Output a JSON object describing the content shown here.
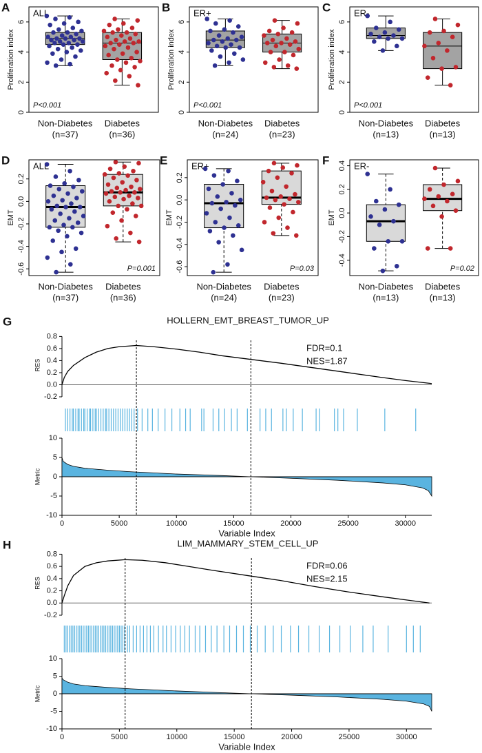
{
  "chart_data": [
    {
      "type": "box",
      "panel": "A",
      "label": "ALL",
      "ylabel": "Proliferation index",
      "p_label": "P<0.001",
      "p_corner": "bottom-left",
      "ylim": [
        0,
        7
      ],
      "yticks": [
        0,
        2,
        4,
        6
      ],
      "box_fill": "#a3a3a3",
      "whisker_style": "solid",
      "groups": [
        {
          "name": "Non-Diabetes",
          "n_label": "(n=37)",
          "color": "#2e3192",
          "box": [
            3.1,
            4.5,
            4.9,
            5.3,
            6.4
          ],
          "points": [
            6.4,
            6.3,
            6.2,
            6.0,
            5.9,
            5.8,
            5.6,
            5.5,
            5.4,
            5.3,
            5.3,
            5.2,
            5.1,
            5.0,
            5.0,
            4.9,
            4.9,
            4.9,
            4.8,
            4.8,
            4.7,
            4.7,
            4.6,
            4.6,
            4.5,
            4.5,
            4.4,
            4.3,
            4.2,
            4.1,
            4.0,
            3.9,
            3.7,
            3.5,
            3.3,
            3.2,
            3.1
          ]
        },
        {
          "name": "Diabetes",
          "n_label": "(n=36)",
          "color": "#c1272d",
          "box": [
            1.8,
            3.5,
            4.6,
            5.3,
            6.2
          ],
          "points": [
            6.2,
            6.1,
            5.9,
            5.8,
            5.6,
            5.5,
            5.4,
            5.3,
            5.3,
            5.2,
            5.1,
            5.0,
            4.9,
            4.8,
            4.7,
            4.7,
            4.6,
            4.6,
            4.5,
            4.4,
            4.3,
            4.2,
            4.0,
            3.9,
            3.8,
            3.6,
            3.5,
            3.4,
            3.3,
            3.1,
            3.0,
            2.8,
            2.6,
            2.4,
            2.1,
            1.8
          ]
        }
      ]
    },
    {
      "type": "box",
      "panel": "B",
      "label": "ER+",
      "ylabel": "Proliferation index",
      "p_label": "P<0.001",
      "p_corner": "bottom-left",
      "ylim": [
        0,
        7
      ],
      "yticks": [
        0,
        2,
        4,
        6
      ],
      "box_fill": "#a3a3a3",
      "whisker_style": "solid",
      "groups": [
        {
          "name": "Non-Diabetes",
          "n_label": "(n=24)",
          "color": "#2e3192",
          "box": [
            3.1,
            4.3,
            4.8,
            5.4,
            6.2
          ],
          "points": [
            6.2,
            6.1,
            5.9,
            5.7,
            5.5,
            5.4,
            5.3,
            5.1,
            5.0,
            4.9,
            4.8,
            4.8,
            4.7,
            4.6,
            4.5,
            4.4,
            4.3,
            4.3,
            4.1,
            3.9,
            3.7,
            3.5,
            3.3,
            3.1
          ]
        },
        {
          "name": "Diabetes",
          "n_label": "(n=23)",
          "color": "#c1272d",
          "box": [
            2.9,
            4.0,
            4.6,
            5.2,
            6.1
          ],
          "points": [
            6.1,
            5.9,
            5.6,
            5.4,
            5.3,
            5.2,
            5.1,
            4.9,
            4.8,
            4.7,
            4.6,
            4.6,
            4.5,
            4.4,
            4.2,
            4.0,
            4.0,
            3.8,
            3.5,
            3.3,
            3.1,
            3.0,
            2.9
          ]
        }
      ]
    },
    {
      "type": "box",
      "panel": "C",
      "label": "ER-",
      "ylabel": "Proliferation index",
      "p_label": "P<0.001",
      "p_corner": "bottom-left",
      "ylim": [
        0,
        7
      ],
      "yticks": [
        0,
        2,
        4,
        6
      ],
      "box_fill": "#a3a3a3",
      "whisker_style": "solid",
      "groups": [
        {
          "name": "Non-Diabetes",
          "n_label": "(n=13)",
          "color": "#2e3192",
          "box": [
            4.1,
            4.9,
            5.1,
            5.6,
            6.4
          ],
          "points": [
            6.4,
            6.0,
            5.6,
            5.5,
            5.3,
            5.2,
            5.1,
            5.0,
            4.9,
            4.9,
            4.7,
            4.4,
            4.1
          ]
        },
        {
          "name": "Diabetes",
          "n_label": "(n=13)",
          "color": "#c1272d",
          "box": [
            1.8,
            2.9,
            4.4,
            5.3,
            6.2
          ],
          "points": [
            6.2,
            5.8,
            5.4,
            5.3,
            5.0,
            4.6,
            4.4,
            4.1,
            3.6,
            3.0,
            2.9,
            2.3,
            1.8
          ]
        }
      ]
    },
    {
      "type": "box",
      "panel": "D",
      "label": "ALL",
      "ylabel": "EMT",
      "p_label": "P=0.001",
      "p_corner": "bottom-right",
      "ylim": [
        -0.66,
        0.37
      ],
      "yticks": [
        -0.6,
        -0.4,
        -0.2,
        {
          "value": 0,
          "label": "0.0"
        },
        0.2
      ],
      "box_fill": "#d9d9d9",
      "whisker_style": "dashed",
      "groups": [
        {
          "name": "Non-Diabetes",
          "n_label": "(n=37)",
          "color": "#2e3192",
          "box": [
            -0.63,
            -0.23,
            -0.05,
            0.14,
            0.33
          ],
          "points": [
            0.33,
            0.27,
            0.22,
            0.19,
            0.16,
            0.14,
            0.13,
            0.11,
            0.09,
            0.07,
            0.05,
            0.03,
            0.01,
            0.0,
            -0.02,
            -0.04,
            -0.05,
            -0.05,
            -0.07,
            -0.09,
            -0.11,
            -0.13,
            -0.15,
            -0.17,
            -0.19,
            -0.21,
            -0.23,
            -0.23,
            -0.26,
            -0.28,
            -0.31,
            -0.35,
            -0.42,
            -0.45,
            -0.5,
            -0.56,
            -0.63
          ]
        },
        {
          "name": "Diabetes",
          "n_label": "(n=36)",
          "color": "#c1272d",
          "box": [
            -0.36,
            -0.04,
            0.08,
            0.24,
            0.35
          ],
          "points": [
            0.35,
            0.34,
            0.31,
            0.29,
            0.27,
            0.25,
            0.24,
            0.23,
            0.21,
            0.19,
            0.17,
            0.15,
            0.13,
            0.12,
            0.11,
            0.1,
            0.09,
            0.08,
            0.08,
            0.07,
            0.05,
            0.04,
            0.03,
            0.02,
            0.0,
            -0.02,
            -0.04,
            -0.04,
            -0.07,
            -0.1,
            -0.13,
            -0.17,
            -0.22,
            -0.28,
            -0.33,
            -0.36
          ]
        }
      ]
    },
    {
      "type": "box",
      "panel": "E",
      "label": "ER+",
      "ylabel": "EMT",
      "p_label": "P=0.03",
      "p_corner": "bottom-right",
      "ylim": [
        -0.68,
        0.36
      ],
      "yticks": [
        -0.6,
        -0.4,
        -0.2,
        {
          "value": 0,
          "label": "0.0"
        },
        0.2
      ],
      "box_fill": "#d9d9d9",
      "whisker_style": "dashed",
      "groups": [
        {
          "name": "Non-Diabetes",
          "n_label": "(n=24)",
          "color": "#2e3192",
          "box": [
            -0.65,
            -0.25,
            -0.03,
            0.14,
            0.28
          ],
          "points": [
            0.28,
            0.26,
            0.22,
            0.17,
            0.14,
            0.1,
            0.06,
            0.03,
            0.0,
            -0.02,
            -0.03,
            -0.05,
            -0.08,
            -0.12,
            -0.16,
            -0.2,
            -0.23,
            -0.25,
            -0.28,
            -0.32,
            -0.38,
            -0.45,
            -0.58,
            -0.65
          ]
        },
        {
          "name": "Diabetes",
          "n_label": "(n=23)",
          "color": "#c1272d",
          "box": [
            -0.32,
            -0.04,
            0.02,
            0.26,
            0.33
          ],
          "points": [
            0.33,
            0.31,
            0.29,
            0.26,
            0.24,
            0.2,
            0.16,
            0.12,
            0.08,
            0.05,
            0.03,
            0.02,
            0.01,
            0.0,
            -0.02,
            -0.04,
            -0.07,
            -0.11,
            -0.16,
            -0.2,
            -0.25,
            -0.3,
            -0.32
          ]
        }
      ]
    },
    {
      "type": "box",
      "panel": "F",
      "label": "ER-",
      "ylabel": "EMT",
      "p_label": "P=0.02",
      "p_corner": "bottom-right",
      "ylim": [
        -0.53,
        0.45
      ],
      "yticks": [
        -0.4,
        -0.2,
        {
          "value": 0,
          "label": "0.0"
        },
        0.2,
        0.4
      ],
      "box_fill": "#d9d9d9",
      "whisker_style": "dashed",
      "groups": [
        {
          "name": "Non-Diabetes",
          "n_label": "(n=13)",
          "color": "#2e3192",
          "box": [
            -0.49,
            -0.24,
            -0.07,
            0.07,
            0.33
          ],
          "points": [
            0.33,
            0.2,
            0.1,
            0.07,
            0.03,
            -0.03,
            -0.07,
            -0.1,
            -0.24,
            -0.24,
            -0.3,
            -0.45,
            -0.49
          ]
        },
        {
          "name": "Diabetes",
          "n_label": "(n=13)",
          "color": "#c1272d",
          "box": [
            -0.3,
            0.02,
            0.12,
            0.24,
            0.38
          ],
          "points": [
            0.38,
            0.27,
            0.24,
            0.2,
            0.16,
            0.14,
            0.12,
            0.1,
            0.06,
            0.02,
            -0.03,
            -0.3,
            -0.3
          ]
        }
      ]
    },
    {
      "type": "gsea",
      "panel": "G",
      "title": "HOLLERN_EMT_BREAST_TUMOR_UP",
      "annotations": [
        "FDR=0.1",
        "NES=1.87"
      ],
      "color": "#5ab4e0",
      "es_ylabel": "RES",
      "es_ylim": [
        -0.2,
        0.85
      ],
      "es_yticks": [
        -0.2,
        {
          "value": 0,
          "label": "0.0"
        },
        0.2,
        0.4,
        0.6,
        0.8
      ],
      "es": {
        "x": [
          0,
          200,
          500,
          1000,
          2000,
          3000,
          4000,
          5000,
          6500,
          8000,
          10000,
          12000,
          14000,
          16500,
          19000,
          22000,
          25000,
          28000,
          30000,
          32300
        ],
        "values": [
          0,
          0.12,
          0.22,
          0.32,
          0.45,
          0.54,
          0.6,
          0.63,
          0.65,
          0.63,
          0.59,
          0.54,
          0.48,
          0.42,
          0.36,
          0.28,
          0.2,
          0.12,
          0.07,
          0.02
        ]
      },
      "hits": [
        300,
        500,
        700,
        900,
        1000,
        1200,
        1400,
        1500,
        1700,
        1900,
        2000,
        2200,
        2400,
        2500,
        2700,
        2900,
        3000,
        3200,
        3400,
        3600,
        3800,
        3900,
        4100,
        4300,
        4500,
        4700,
        4900,
        5100,
        5300,
        5500,
        5700,
        5900,
        6100,
        6300,
        6600,
        7000,
        7500,
        7900,
        8400,
        9000,
        9600,
        10300,
        10800,
        11200,
        12200,
        12400,
        13200,
        13700,
        14200,
        14800,
        15300,
        16200,
        17300,
        17800,
        18300,
        19300,
        19600,
        20200,
        21000,
        22200,
        22500,
        23800,
        24100,
        24600,
        25800,
        28200,
        30900
      ],
      "metric_ylabel": "Metric",
      "metric_ylim": [
        -10,
        10
      ],
      "metric_yticks": [
        -10,
        -5,
        0,
        5,
        10
      ],
      "metric": {
        "x": [
          0,
          100,
          500,
          1000,
          2000,
          4000,
          6000,
          8000,
          10000,
          14000,
          16500,
          20000,
          24000,
          28000,
          30000,
          31500,
          32000,
          32300
        ],
        "values": [
          5,
          4,
          3.2,
          2.7,
          2.2,
          1.7,
          1.3,
          1.0,
          0.7,
          0.3,
          0,
          -0.4,
          -0.9,
          -1.6,
          -2.1,
          -2.9,
          -3.6,
          -5
        ]
      },
      "vlines": [
        6500,
        16500
      ],
      "xlim": [
        0,
        32300
      ],
      "xticks": [
        0,
        5000,
        10000,
        15000,
        20000,
        25000,
        30000
      ],
      "xlabel": "Variable Index"
    },
    {
      "type": "gsea",
      "panel": "H",
      "title": "LIM_MAMMARY_STEM_CELL_UP",
      "annotations": [
        "FDR=0.06",
        "NES=2.15"
      ],
      "color": "#5ab4e0",
      "es_ylabel": "RES",
      "es_ylim": [
        -0.2,
        0.85
      ],
      "es_yticks": [
        -0.2,
        {
          "value": 0,
          "label": "0.0"
        },
        0.2,
        0.4,
        0.6,
        0.8
      ],
      "es": {
        "x": [
          0,
          200,
          500,
          1000,
          2000,
          3000,
          4000,
          5500,
          7000,
          9000,
          11000,
          13000,
          16500,
          19000,
          22000,
          25000,
          28000,
          30000,
          32000
        ],
        "values": [
          0,
          0.12,
          0.28,
          0.45,
          0.6,
          0.66,
          0.69,
          0.71,
          0.7,
          0.66,
          0.6,
          0.54,
          0.44,
          0.37,
          0.27,
          0.18,
          0.1,
          0.05,
          0.0
        ]
      },
      "hits": [
        200,
        350,
        500,
        650,
        800,
        950,
        1100,
        1250,
        1400,
        1550,
        1700,
        1850,
        2000,
        2150,
        2300,
        2450,
        2600,
        2750,
        2900,
        3050,
        3200,
        3350,
        3500,
        3650,
        3800,
        3950,
        4100,
        4250,
        4400,
        4550,
        4700,
        4850,
        5000,
        5150,
        5300,
        5450,
        5700,
        5900,
        6200,
        6500,
        6800,
        7100,
        7400,
        7700,
        8000,
        8400,
        8800,
        9100,
        9500,
        9900,
        10300,
        10700,
        11100,
        11600,
        12000,
        12500,
        13000,
        13500,
        14100,
        14600,
        15200,
        15800,
        16400,
        17000,
        17700,
        18400,
        19100,
        19900,
        20600,
        21500,
        22400,
        23300,
        24200,
        25100,
        26200,
        27100,
        28400,
        30000,
        30600,
        31200
      ],
      "metric_ylabel": "Metric",
      "metric_ylim": [
        -10,
        10
      ],
      "metric_yticks": [
        -10,
        -5,
        0,
        5,
        10
      ],
      "metric": {
        "x": [
          0,
          100,
          500,
          1000,
          2000,
          4000,
          6000,
          8000,
          10000,
          14000,
          16500,
          20000,
          24000,
          28000,
          30000,
          31500,
          32000,
          32200
        ],
        "values": [
          4.5,
          4,
          3.3,
          2.8,
          2.3,
          1.8,
          1.4,
          1.1,
          0.8,
          0.3,
          0,
          -0.4,
          -0.9,
          -1.6,
          -2.1,
          -2.9,
          -3.6,
          -5
        ]
      },
      "vlines": [
        5500,
        16500
      ],
      "xlim": [
        0,
        32200
      ],
      "xticks": [
        0,
        5000,
        10000,
        15000,
        20000,
        25000,
        30000
      ],
      "xlabel": "Variable Index"
    }
  ]
}
